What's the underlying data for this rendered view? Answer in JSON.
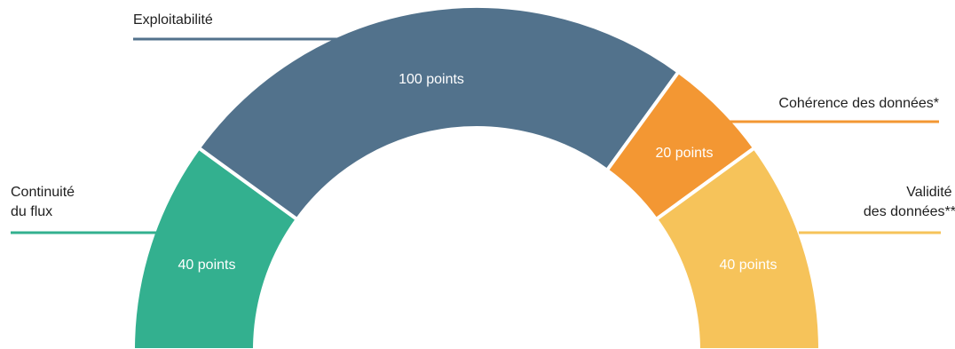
{
  "chart_data": {
    "type": "pie",
    "categories": [
      "Continuité du flux",
      "Exploitabilité",
      "Cohérence des données*",
      "Validité des données**"
    ],
    "values": [
      40,
      100,
      20,
      40
    ],
    "value_labels": [
      "40 points",
      "100 points",
      "20 points",
      "40 points"
    ],
    "label_lines": [
      [
        "Continuité",
        "du flux"
      ],
      [
        "Exploitabilité"
      ],
      [
        "Cohérence des données*"
      ],
      [
        "Validité",
        "des données**"
      ]
    ],
    "colors": [
      "#33b08f",
      "#52728c",
      "#f39733",
      "#f6c35a"
    ],
    "style": "half-donut"
  }
}
